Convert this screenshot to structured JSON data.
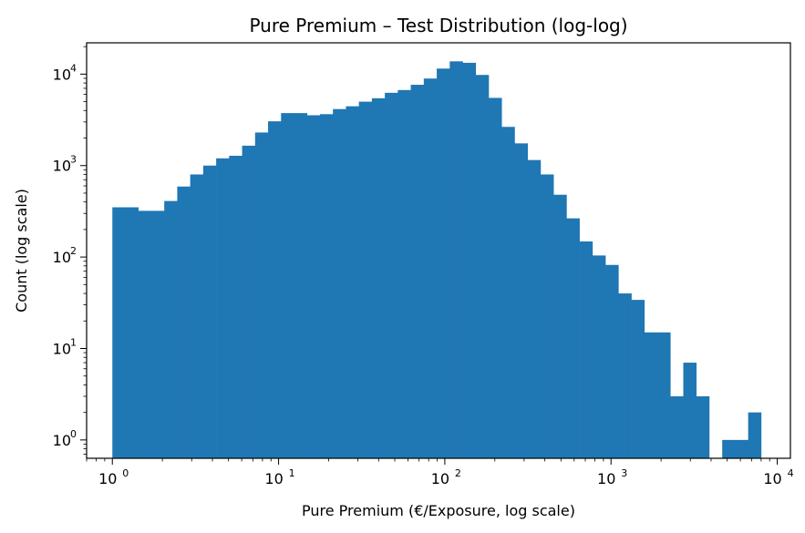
{
  "chart_data": {
    "type": "bar",
    "title": "Pure Premium – Test Distribution (log-log)",
    "xlabel": "Pure Premium (€/Exposure, log scale)",
    "ylabel": "Count (log scale)",
    "x_scale": "log",
    "y_scale": "log",
    "xlim": [
      0.7,
      12000
    ],
    "ylim": [
      0.63,
      22000
    ],
    "grid": false,
    "legend": "none",
    "bar_color": "#1f77b4",
    "x_ticks": [
      {
        "base": "10",
        "exp": "0",
        "value": 1
      },
      {
        "base": "10",
        "exp": "1",
        "value": 10
      },
      {
        "base": "10",
        "exp": "2",
        "value": 100
      },
      {
        "base": "10",
        "exp": "3",
        "value": 1000
      },
      {
        "base": "10",
        "exp": "4",
        "value": 10000
      }
    ],
    "y_ticks": [
      {
        "base": "10",
        "exp": "0",
        "value": 1
      },
      {
        "base": "10",
        "exp": "1",
        "value": 10
      },
      {
        "base": "10",
        "exp": "2",
        "value": 100
      },
      {
        "base": "10",
        "exp": "3",
        "value": 1000
      },
      {
        "base": "10",
        "exp": "4",
        "value": 10000
      }
    ],
    "bin_start": 1,
    "bin_end": 8000,
    "bin_count": 50,
    "counts": [
      350,
      350,
      320,
      320,
      410,
      590,
      800,
      1000,
      1200,
      1280,
      1650,
      2300,
      3050,
      3750,
      3750,
      3550,
      3650,
      4150,
      4450,
      5000,
      5450,
      6250,
      6700,
      7650,
      8950,
      11500,
      13800,
      13300,
      9800,
      5500,
      2650,
      1750,
      1150,
      800,
      480,
      265,
      148,
      104,
      82,
      40,
      34,
      15,
      15,
      3,
      7,
      3,
      0,
      1,
      1,
      2
    ]
  }
}
